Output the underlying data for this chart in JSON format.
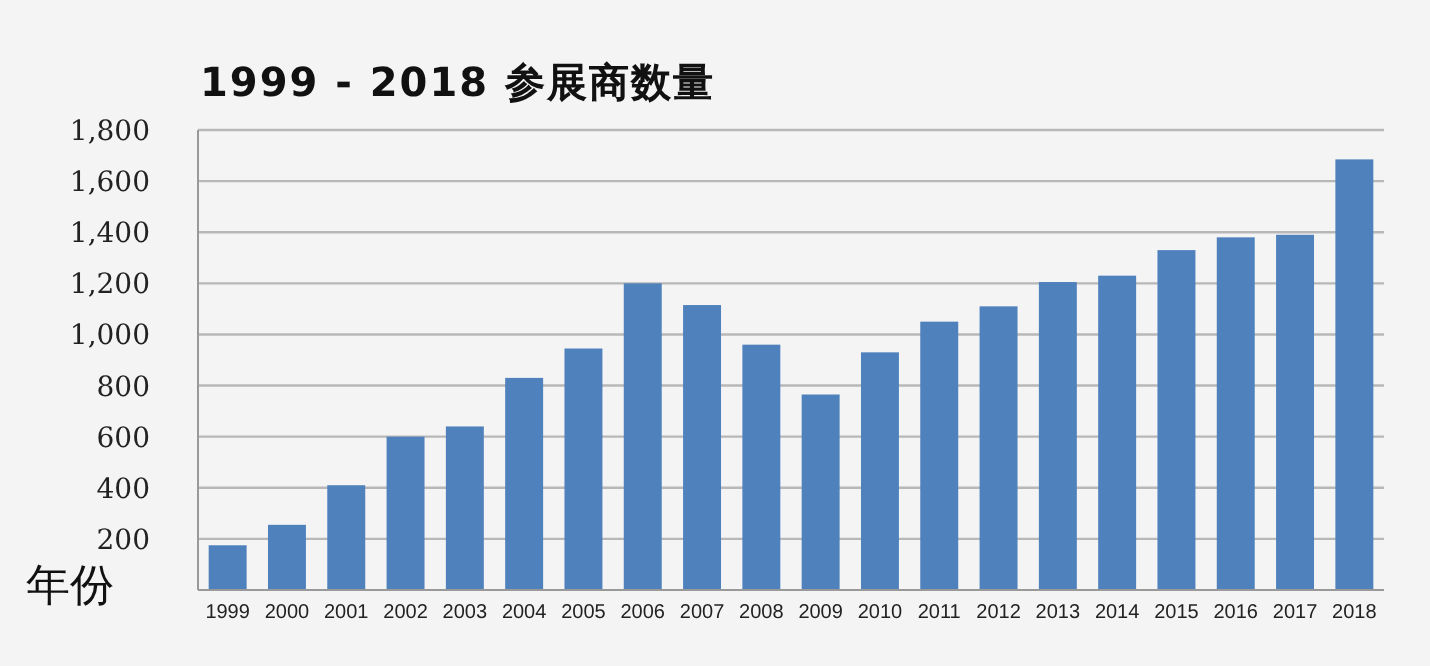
{
  "chart_data": {
    "type": "bar",
    "title": "1999 - 2018 参展商数量",
    "xlabel": "年份",
    "categories": [
      "1999",
      "2000",
      "2001",
      "2002",
      "2003",
      "2004",
      "2005",
      "2006",
      "2007",
      "2008",
      "2009",
      "2010",
      "2011",
      "2012",
      "2013",
      "2014",
      "2015",
      "2016",
      "2017",
      "2018"
    ],
    "values": [
      175,
      255,
      410,
      600,
      640,
      830,
      945,
      1200,
      1115,
      960,
      765,
      930,
      1050,
      1110,
      1205,
      1230,
      1330,
      1380,
      1390,
      1685
    ],
    "color": "#4f81bd",
    "ylim": [
      0,
      1800
    ],
    "yticks": [
      {
        "value": 200,
        "label": "200"
      },
      {
        "value": 400,
        "label": "400"
      },
      {
        "value": 600,
        "label": "600"
      },
      {
        "value": 800,
        "label": "800"
      },
      {
        "value": 1000,
        "label": "1,000"
      },
      {
        "value": 1200,
        "label": "1,200"
      },
      {
        "value": 1400,
        "label": "1,400"
      },
      {
        "value": 1600,
        "label": "1,600"
      },
      {
        "value": 1800,
        "label": "1,800"
      }
    ],
    "grid": "y"
  }
}
